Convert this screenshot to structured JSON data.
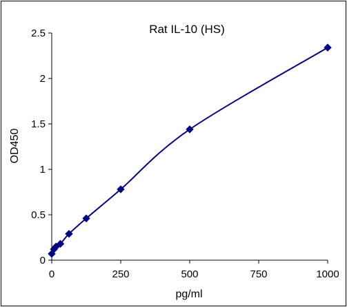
{
  "chart_data": {
    "type": "scatter",
    "title": "Rat IL-10 (HS)",
    "xlabel": "pg/ml",
    "ylabel": "OD450",
    "xlim": [
      0,
      1000
    ],
    "ylim": [
      0,
      2.5
    ],
    "xticks": [
      "0",
      "250",
      "500",
      "750",
      "1000"
    ],
    "yticks": [
      "0",
      "0.5",
      "1",
      "1.5",
      "2",
      "2.5"
    ],
    "grid": false,
    "legend": "none",
    "marker": "diamond",
    "curve": "smooth",
    "color": "#000080",
    "series": [
      {
        "x": [
          0,
          7.8,
          15.6,
          31.25,
          62.5,
          125,
          250,
          500,
          1000
        ],
        "y": [
          0.07,
          0.12,
          0.15,
          0.18,
          0.29,
          0.46,
          0.78,
          1.44,
          2.34
        ]
      }
    ]
  }
}
